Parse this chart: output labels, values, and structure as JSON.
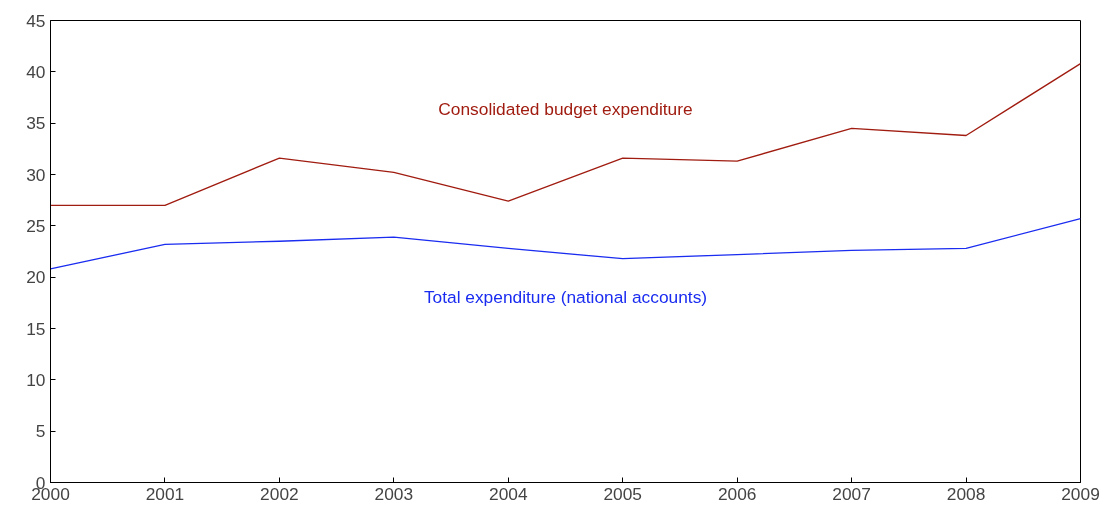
{
  "chart_data": {
    "type": "line",
    "x": [
      2000,
      2001,
      2002,
      2003,
      2004,
      2005,
      2006,
      2007,
      2008,
      2009
    ],
    "series": [
      {
        "name": "Consolidated budget expenditure",
        "color": "#a01c10",
        "values": [
          27.0,
          27.0,
          31.6,
          30.2,
          27.4,
          31.6,
          31.3,
          34.5,
          33.8,
          40.8
        ]
      },
      {
        "name": "Total expenditure (national accounts)",
        "color": "#1a2cf0",
        "values": [
          20.8,
          23.2,
          23.5,
          23.9,
          22.8,
          21.8,
          22.2,
          22.6,
          22.8,
          25.7
        ]
      }
    ],
    "xlim": [
      2000,
      2009
    ],
    "xticks": [
      2000,
      2001,
      2002,
      2003,
      2004,
      2005,
      2006,
      2007,
      2008,
      2009
    ],
    "ylim": [
      0,
      45
    ],
    "yticks": [
      0,
      5,
      10,
      15,
      20,
      25,
      30,
      35,
      40,
      45
    ],
    "grid": false,
    "legend": false,
    "marker": "none",
    "line_style": "solid"
  }
}
